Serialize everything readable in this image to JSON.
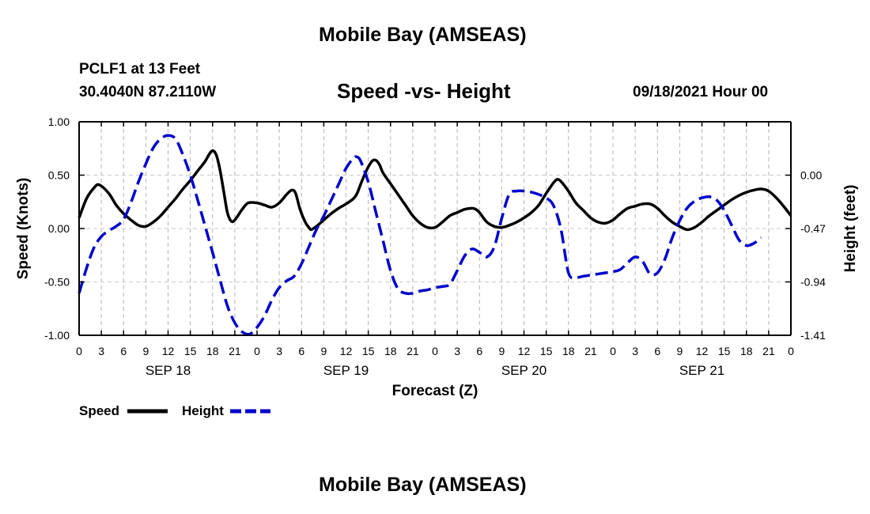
{
  "page": {
    "title_top": "Mobile Bay (AMSEAS)",
    "title_bottom": "Mobile Bay (AMSEAS)",
    "station": "PCLF1 at 13 Feet",
    "coords": "30.4040N  87.2110W",
    "plot_title": "Speed -vs- Height",
    "datetime": "09/18/2021 Hour 00"
  },
  "chart_data": {
    "type": "line",
    "title": "Speed -vs- Height",
    "xlabel": "Forecast (Z)",
    "ylabel": "Speed (Knots)",
    "y2label": "Height (feet)",
    "ylim": [
      -1.0,
      1.0
    ],
    "y2lim": [
      -1.41,
      0.47
    ],
    "x_range": [
      0,
      96
    ],
    "x_tick_labels": [
      "0",
      "3",
      "6",
      "9",
      "12",
      "15",
      "18",
      "21",
      "0",
      "3",
      "6",
      "9",
      "12",
      "15",
      "18",
      "21",
      "0",
      "3",
      "6",
      "9",
      "12",
      "15",
      "18",
      "21",
      "0",
      "3",
      "6",
      "9",
      "12",
      "15",
      "18",
      "21",
      "0"
    ],
    "y_ticks": [
      {
        "value": 1.0,
        "label": "1.00"
      },
      {
        "value": 0.5,
        "label": "0.50"
      },
      {
        "value": 0.0,
        "label": "0.00"
      },
      {
        "value": -0.5,
        "label": "-0.50"
      },
      {
        "value": -1.0,
        "label": "-1.00"
      }
    ],
    "y2_ticks": [
      {
        "value": 0.0,
        "label": "0.00"
      },
      {
        "value": -0.47,
        "label": "-0.47"
      },
      {
        "value": -0.94,
        "label": "-0.94"
      },
      {
        "value": -1.41,
        "label": "-1.41"
      }
    ],
    "days": [
      {
        "label": "SEP 18",
        "hour": 12
      },
      {
        "label": "SEP 19",
        "hour": 36
      },
      {
        "label": "SEP 20",
        "hour": 60
      },
      {
        "label": "SEP 21",
        "hour": 84
      }
    ],
    "grid": true,
    "legend_position": "bottom-left",
    "series": [
      {
        "name": "Speed",
        "axis": "left",
        "color": "#000000",
        "dash": "solid",
        "points": [
          [
            0,
            0.1
          ],
          [
            1,
            0.28
          ],
          [
            2,
            0.38
          ],
          [
            2.7,
            0.41
          ],
          [
            4,
            0.33
          ],
          [
            5,
            0.22
          ],
          [
            6,
            0.14
          ],
          [
            7,
            0.08
          ],
          [
            8,
            0.03
          ],
          [
            9,
            0.02
          ],
          [
            10,
            0.06
          ],
          [
            11,
            0.12
          ],
          [
            12,
            0.2
          ],
          [
            13,
            0.28
          ],
          [
            14,
            0.37
          ],
          [
            15,
            0.45
          ],
          [
            16,
            0.54
          ],
          [
            17,
            0.63
          ],
          [
            17.5,
            0.69
          ],
          [
            18,
            0.73
          ],
          [
            18.5,
            0.69
          ],
          [
            19,
            0.55
          ],
          [
            19.5,
            0.35
          ],
          [
            20,
            0.15
          ],
          [
            20.5,
            0.07
          ],
          [
            21,
            0.08
          ],
          [
            22,
            0.18
          ],
          [
            22.8,
            0.24
          ],
          [
            24,
            0.24
          ],
          [
            25,
            0.22
          ],
          [
            26,
            0.2
          ],
          [
            27,
            0.24
          ],
          [
            28,
            0.32
          ],
          [
            28.7,
            0.36
          ],
          [
            29.2,
            0.33
          ],
          [
            29.8,
            0.18
          ],
          [
            30.5,
            0.06
          ],
          [
            31,
            0.01
          ],
          [
            31.3,
            -0.01
          ],
          [
            32,
            0.02
          ],
          [
            33,
            0.08
          ],
          [
            34,
            0.14
          ],
          [
            35,
            0.19
          ],
          [
            36,
            0.23
          ],
          [
            37,
            0.28
          ],
          [
            37.5,
            0.33
          ],
          [
            38,
            0.42
          ],
          [
            38.8,
            0.55
          ],
          [
            39.5,
            0.63
          ],
          [
            40,
            0.64
          ],
          [
            40.5,
            0.6
          ],
          [
            41,
            0.52
          ],
          [
            42,
            0.42
          ],
          [
            43,
            0.32
          ],
          [
            44,
            0.22
          ],
          [
            45,
            0.12
          ],
          [
            46,
            0.05
          ],
          [
            47,
            0.01
          ],
          [
            48,
            0.01
          ],
          [
            49,
            0.06
          ],
          [
            50,
            0.12
          ],
          [
            51,
            0.15
          ],
          [
            52,
            0.18
          ],
          [
            53,
            0.19
          ],
          [
            53.5,
            0.18
          ],
          [
            54,
            0.15
          ],
          [
            55,
            0.06
          ],
          [
            56,
            0.02
          ],
          [
            57,
            0.01
          ],
          [
            58,
            0.03
          ],
          [
            59,
            0.06
          ],
          [
            60,
            0.1
          ],
          [
            61,
            0.15
          ],
          [
            62,
            0.22
          ],
          [
            63,
            0.33
          ],
          [
            64,
            0.43
          ],
          [
            64.5,
            0.46
          ],
          [
            65,
            0.44
          ],
          [
            66,
            0.35
          ],
          [
            67,
            0.24
          ],
          [
            68,
            0.17
          ],
          [
            69,
            0.1
          ],
          [
            70,
            0.06
          ],
          [
            71,
            0.05
          ],
          [
            72,
            0.08
          ],
          [
            73,
            0.14
          ],
          [
            74,
            0.19
          ],
          [
            75,
            0.21
          ],
          [
            76,
            0.23
          ],
          [
            77,
            0.23
          ],
          [
            78,
            0.19
          ],
          [
            79,
            0.12
          ],
          [
            80,
            0.06
          ],
          [
            81,
            0.02
          ],
          [
            82,
            -0.01
          ],
          [
            83,
            0.01
          ],
          [
            84,
            0.06
          ],
          [
            85,
            0.12
          ],
          [
            86,
            0.17
          ],
          [
            87,
            0.22
          ],
          [
            88,
            0.27
          ],
          [
            89,
            0.31
          ],
          [
            90,
            0.34
          ],
          [
            91,
            0.36
          ],
          [
            92,
            0.37
          ],
          [
            93,
            0.35
          ],
          [
            94,
            0.29
          ],
          [
            95,
            0.21
          ],
          [
            96,
            0.12
          ]
        ]
      },
      {
        "name": "Height",
        "axis": "right",
        "color": "#0000cc",
        "dash": "dashed",
        "points": [
          [
            0,
            -1.04
          ],
          [
            1,
            -0.82
          ],
          [
            2,
            -0.64
          ],
          [
            3,
            -0.54
          ],
          [
            4,
            -0.49
          ],
          [
            5,
            -0.45
          ],
          [
            6,
            -0.39
          ],
          [
            7,
            -0.24
          ],
          [
            8,
            -0.06
          ],
          [
            9,
            0.1
          ],
          [
            10,
            0.24
          ],
          [
            11,
            0.32
          ],
          [
            12,
            0.35
          ],
          [
            13,
            0.32
          ],
          [
            14,
            0.18
          ],
          [
            15,
            0.0
          ],
          [
            16,
            -0.22
          ],
          [
            17,
            -0.45
          ],
          [
            18,
            -0.68
          ],
          [
            19,
            -0.92
          ],
          [
            20,
            -1.15
          ],
          [
            21,
            -1.3
          ],
          [
            22,
            -1.38
          ],
          [
            23,
            -1.4
          ],
          [
            24,
            -1.34
          ],
          [
            25,
            -1.24
          ],
          [
            26,
            -1.1
          ],
          [
            27,
            -0.99
          ],
          [
            28,
            -0.93
          ],
          [
            29,
            -0.89
          ],
          [
            30,
            -0.78
          ],
          [
            31,
            -0.63
          ],
          [
            32,
            -0.48
          ],
          [
            33,
            -0.36
          ],
          [
            34,
            -0.22
          ],
          [
            35,
            -0.08
          ],
          [
            36,
            0.06
          ],
          [
            37,
            0.15
          ],
          [
            37.5,
            0.16
          ],
          [
            38,
            0.12
          ],
          [
            39,
            -0.06
          ],
          [
            40,
            -0.32
          ],
          [
            41,
            -0.58
          ],
          [
            42,
            -0.84
          ],
          [
            43,
            -1.0
          ],
          [
            44,
            -1.04
          ],
          [
            45,
            -1.04
          ],
          [
            46,
            -1.02
          ],
          [
            47,
            -1.01
          ],
          [
            48,
            -0.99
          ],
          [
            49,
            -0.98
          ],
          [
            50,
            -0.96
          ],
          [
            51,
            -0.84
          ],
          [
            52,
            -0.71
          ],
          [
            53,
            -0.65
          ],
          [
            54,
            -0.68
          ],
          [
            55,
            -0.72
          ],
          [
            56,
            -0.63
          ],
          [
            57,
            -0.38
          ],
          [
            58,
            -0.17
          ],
          [
            59,
            -0.14
          ],
          [
            60,
            -0.14
          ],
          [
            61,
            -0.15
          ],
          [
            62,
            -0.17
          ],
          [
            63,
            -0.2
          ],
          [
            64,
            -0.27
          ],
          [
            65,
            -0.48
          ],
          [
            66,
            -0.86
          ],
          [
            67,
            -0.9
          ],
          [
            68,
            -0.89
          ],
          [
            69,
            -0.88
          ],
          [
            70,
            -0.87
          ],
          [
            71,
            -0.86
          ],
          [
            72,
            -0.85
          ],
          [
            73,
            -0.83
          ],
          [
            74,
            -0.77
          ],
          [
            75,
            -0.72
          ],
          [
            76,
            -0.76
          ],
          [
            77,
            -0.87
          ],
          [
            78,
            -0.86
          ],
          [
            79,
            -0.74
          ],
          [
            80,
            -0.55
          ],
          [
            81,
            -0.4
          ],
          [
            82,
            -0.29
          ],
          [
            83,
            -0.23
          ],
          [
            84,
            -0.2
          ],
          [
            85,
            -0.19
          ],
          [
            86,
            -0.22
          ],
          [
            87,
            -0.31
          ],
          [
            88,
            -0.44
          ],
          [
            89,
            -0.57
          ],
          [
            90,
            -0.62
          ],
          [
            91,
            -0.6
          ],
          [
            92,
            -0.55
          ]
        ]
      }
    ]
  },
  "legend": {
    "speed_label": "Speed",
    "height_label": "Height"
  }
}
